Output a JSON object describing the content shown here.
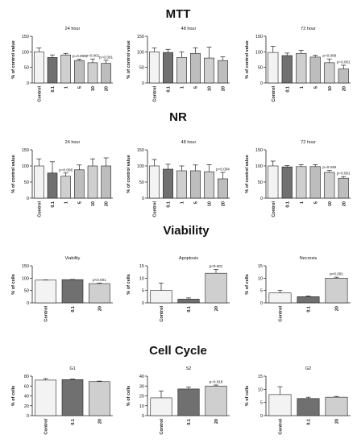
{
  "section_titles": [
    "MTT",
    "NR",
    "Viability",
    "Cell Cycle"
  ],
  "colors": {
    "control": "#f3f3f3",
    "light": "#cfcfcf",
    "medium": "#bdbdbd",
    "dark": "#707070",
    "stroke": "#222222"
  },
  "chart_data": [
    {
      "type": "bar",
      "section": "MTT",
      "title": "24 hour",
      "ylabel": "% of control value",
      "categories": [
        "Control",
        "0.1",
        "1",
        "5",
        "10",
        "20"
      ],
      "values": [
        100,
        82,
        90,
        72,
        65,
        63
      ],
      "errors": [
        12,
        8,
        5,
        4,
        12,
        10
      ],
      "annotations": [
        "",
        "",
        "",
        "p=0.008",
        "p=0.001",
        "p=0.001"
      ],
      "ylim": [
        0,
        150
      ],
      "yticks": [
        0,
        50,
        100,
        150
      ],
      "dark": [
        1
      ]
    },
    {
      "type": "bar",
      "section": "MTT",
      "title": "48 hour",
      "ylabel": "% of control value",
      "categories": [
        "Control",
        "0.1",
        "1",
        "5",
        "10",
        "20"
      ],
      "values": [
        100,
        98,
        82,
        95,
        80,
        72
      ],
      "errors": [
        12,
        10,
        18,
        18,
        35,
        12
      ],
      "annotations": [
        "",
        "",
        "",
        "",
        "",
        ""
      ],
      "ylim": [
        0,
        150
      ],
      "yticks": [
        0,
        50,
        100,
        150
      ],
      "dark": [
        1
      ]
    },
    {
      "type": "bar",
      "section": "MTT",
      "title": "72 hour",
      "ylabel": "% of control value",
      "categories": [
        "Control",
        "0.1",
        "1",
        "5",
        "10",
        "20"
      ],
      "values": [
        98,
        88,
        95,
        83,
        65,
        45
      ],
      "errors": [
        20,
        8,
        10,
        6,
        12,
        12
      ],
      "annotations": [
        "",
        "",
        "",
        "",
        "p=0.008",
        "p=0.001"
      ],
      "ylim": [
        0,
        150
      ],
      "yticks": [
        0,
        50,
        100,
        150
      ],
      "dark": [
        1
      ]
    },
    {
      "type": "bar",
      "section": "NR",
      "title": "24 hour",
      "ylabel": "% of control value",
      "categories": [
        "Control",
        "0.1",
        "1",
        "5",
        "10",
        "20"
      ],
      "values": [
        100,
        78,
        68,
        88,
        100,
        100
      ],
      "errors": [
        22,
        35,
        10,
        15,
        22,
        25
      ],
      "annotations": [
        "",
        "",
        "p=0.008",
        "",
        "",
        ""
      ],
      "ylim": [
        0,
        150
      ],
      "yticks": [
        0,
        50,
        100,
        150
      ],
      "dark": [
        1
      ]
    },
    {
      "type": "bar",
      "section": "NR",
      "title": "48 hour",
      "ylabel": "% of control value",
      "categories": [
        "Control",
        "0.1",
        "1",
        "5",
        "10",
        "20"
      ],
      "values": [
        100,
        90,
        85,
        85,
        82,
        60
      ],
      "errors": [
        20,
        15,
        15,
        18,
        22,
        20
      ],
      "annotations": [
        "",
        "",
        "",
        "",
        "",
        "p=0.004"
      ],
      "ylim": [
        0,
        150
      ],
      "yticks": [
        0,
        50,
        100,
        150
      ],
      "dark": [
        1
      ]
    },
    {
      "type": "bar",
      "section": "NR",
      "title": "72 hour",
      "ylabel": "% of control value",
      "categories": [
        "Control",
        "0.1",
        "1",
        "5",
        "10",
        "20"
      ],
      "values": [
        100,
        97,
        98,
        98,
        80,
        62
      ],
      "errors": [
        15,
        4,
        6,
        6,
        6,
        5
      ],
      "annotations": [
        "",
        "",
        "",
        "",
        "p=0.049",
        "p=0.001"
      ],
      "ylim": [
        0,
        150
      ],
      "yticks": [
        0,
        50,
        100,
        150
      ],
      "dark": [
        1
      ]
    },
    {
      "type": "bar",
      "section": "Viability",
      "title": "Viability",
      "ylabel": "% of cells",
      "categories": [
        "Control",
        "0.1",
        "20"
      ],
      "values": [
        92,
        94,
        78
      ],
      "errors": [
        1,
        1,
        2
      ],
      "annotations": [
        "",
        "",
        "p<0.001"
      ],
      "ylim": [
        0,
        150
      ],
      "yticks": [
        0,
        50,
        100,
        150
      ],
      "dark": [
        1
      ]
    },
    {
      "type": "bar",
      "section": "Viability",
      "title": "Apoptosis",
      "ylabel": "% of cells",
      "categories": [
        "Control",
        "0.1",
        "20"
      ],
      "values": [
        5,
        1.5,
        12
      ],
      "errors": [
        3,
        0.5,
        1.5
      ],
      "annotations": [
        "",
        "",
        "p<0.001"
      ],
      "ylim": [
        0,
        15
      ],
      "yticks": [
        0,
        5,
        10,
        15
      ],
      "dark": [
        1
      ]
    },
    {
      "type": "bar",
      "section": "Viability",
      "title": "Necrosis",
      "ylabel": "% of cells",
      "categories": [
        "Control",
        "0.1",
        "20"
      ],
      "values": [
        4,
        2.5,
        10
      ],
      "errors": [
        1,
        0.3,
        0.4
      ],
      "annotations": [
        "",
        "",
        "p<0.001"
      ],
      "ylim": [
        0,
        15
      ],
      "yticks": [
        0,
        5,
        10,
        15
      ],
      "dark": [
        1
      ]
    },
    {
      "type": "bar",
      "section": "Cell Cycle",
      "title": "G1",
      "ylabel": "% of cells",
      "categories": [
        "Control",
        "0.1",
        "20"
      ],
      "values": [
        72,
        73,
        69
      ],
      "errors": [
        3,
        1,
        1
      ],
      "annotations": [
        "",
        "",
        ""
      ],
      "ylim": [
        0,
        80
      ],
      "yticks": [
        0,
        20,
        40,
        60,
        80
      ],
      "dark": [
        1
      ]
    },
    {
      "type": "bar",
      "section": "Cell Cycle",
      "title": "S2",
      "ylabel": "% of cells",
      "categories": [
        "Control",
        "0.1",
        "20"
      ],
      "values": [
        18,
        27,
        30
      ],
      "errors": [
        7,
        2,
        1
      ],
      "annotations": [
        "",
        "",
        "p=0.018"
      ],
      "ylim": [
        0,
        40
      ],
      "yticks": [
        0,
        10,
        20,
        30,
        40
      ],
      "dark": [
        1
      ]
    },
    {
      "type": "bar",
      "section": "Cell Cycle",
      "title": "G2",
      "ylabel": "% of cells",
      "categories": [
        "Control",
        "0.1",
        "20"
      ],
      "values": [
        8,
        6.5,
        7
      ],
      "errors": [
        3,
        0.5,
        0.3
      ],
      "annotations": [
        "",
        "",
        ""
      ],
      "ylim": [
        0,
        15
      ],
      "yticks": [
        0,
        5,
        10,
        15
      ],
      "dark": [
        1
      ]
    }
  ]
}
